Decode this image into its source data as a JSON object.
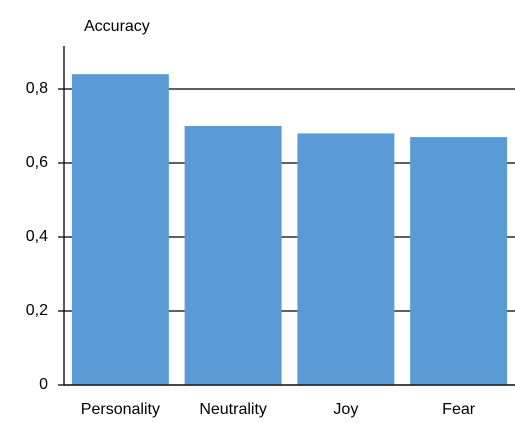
{
  "chart_data": {
    "type": "bar",
    "axis_label": "Accuracy",
    "categories": [
      "Personality",
      "Neutrality",
      "Joy",
      "Fear"
    ],
    "values": [
      0.84,
      0.7,
      0.68,
      0.67
    ],
    "color": "#5b9bd5",
    "ylim": [
      0,
      0.9
    ],
    "yticks": [
      0,
      {
        "value": 0.2,
        "label": "0,2"
      },
      {
        "value": 0.4,
        "label": "0,4"
      },
      {
        "value": 0.6,
        "label": "0,6"
      },
      {
        "value": 0.8,
        "label": "0,8"
      }
    ],
    "grid": true
  }
}
